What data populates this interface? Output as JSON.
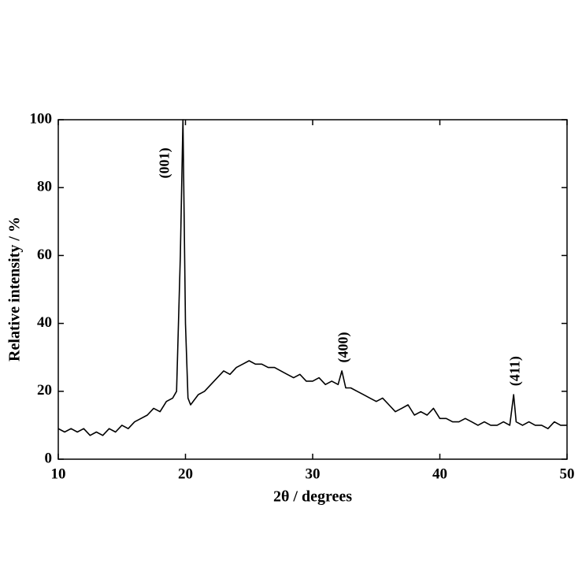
{
  "chart_data": {
    "type": "line",
    "xlabel": "2θ / degrees",
    "ylabel": "Relative intensity / %",
    "xlim": [
      10,
      50
    ],
    "ylim": [
      0,
      100
    ],
    "xticks": [
      10,
      20,
      30,
      40,
      50
    ],
    "yticks": [
      0,
      20,
      40,
      60,
      80,
      100
    ],
    "color": "#000000",
    "x": [
      10,
      10.5,
      11,
      11.5,
      12,
      12.5,
      13,
      13.5,
      14,
      14.5,
      15,
      15.5,
      16,
      16.5,
      17,
      17.5,
      18,
      18.5,
      19,
      19.3,
      19.6,
      19.8,
      20,
      20.2,
      20.4,
      21,
      21.5,
      22,
      22.5,
      23,
      23.5,
      24,
      24.5,
      25,
      25.5,
      26,
      26.5,
      27,
      27.5,
      28,
      28.5,
      29,
      29.5,
      30,
      30.5,
      31,
      31.5,
      32,
      32.3,
      32.6,
      33,
      33.5,
      34,
      34.5,
      35,
      35.5,
      36,
      36.5,
      37,
      37.5,
      38,
      38.5,
      39,
      39.5,
      40,
      40.5,
      41,
      41.5,
      42,
      42.5,
      43,
      43.5,
      44,
      44.5,
      45,
      45.5,
      45.8,
      46,
      46.5,
      47,
      47.5,
      48,
      48.5,
      49,
      49.5,
      50
    ],
    "values": [
      9,
      8,
      9,
      8,
      9,
      7,
      8,
      7,
      9,
      8,
      10,
      9,
      11,
      12,
      13,
      15,
      14,
      17,
      18,
      20,
      60,
      100,
      40,
      18,
      16,
      19,
      20,
      22,
      24,
      26,
      25,
      27,
      28,
      29,
      28,
      28,
      27,
      27,
      26,
      25,
      24,
      25,
      23,
      23,
      24,
      22,
      23,
      22,
      26,
      21,
      21,
      20,
      19,
      18,
      17,
      18,
      16,
      14,
      15,
      16,
      13,
      14,
      13,
      15,
      12,
      12,
      11,
      11,
      12,
      11,
      10,
      11,
      10,
      10,
      11,
      10,
      19,
      11,
      10,
      11,
      10,
      10,
      9,
      11,
      10,
      10
    ],
    "annotations": [
      {
        "text": "(001)",
        "x": 19.8,
        "y": 100
      },
      {
        "text": "(400)",
        "x": 32.3,
        "y": 26
      },
      {
        "text": "(411)",
        "x": 45.8,
        "y": 19
      }
    ]
  }
}
